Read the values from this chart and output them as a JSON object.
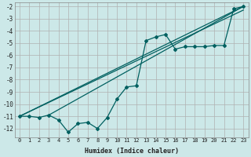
{
  "xlabel": "Humidex (Indice chaleur)",
  "background_color": "#cce8e8",
  "grid_color": "#b0b0b0",
  "line_color": "#006060",
  "xlim": [
    -0.5,
    23.5
  ],
  "ylim": [
    -12.7,
    -1.7
  ],
  "xticks": [
    0,
    1,
    2,
    3,
    4,
    5,
    6,
    7,
    8,
    9,
    10,
    11,
    12,
    13,
    14,
    15,
    16,
    17,
    18,
    19,
    20,
    21,
    22,
    23
  ],
  "yticks": [
    -2,
    -3,
    -4,
    -5,
    -6,
    -7,
    -8,
    -9,
    -10,
    -11,
    -12
  ],
  "jagged_x": [
    0,
    1,
    2,
    3,
    4,
    5,
    6,
    7,
    8,
    9,
    10,
    11,
    12,
    13,
    14,
    15,
    16,
    17,
    18,
    19,
    20,
    21,
    22,
    23
  ],
  "jagged_y": [
    -11.0,
    -11.0,
    -11.1,
    -10.9,
    -11.3,
    -12.3,
    -11.6,
    -11.5,
    -12.0,
    -11.1,
    -9.6,
    -8.6,
    -8.5,
    -4.8,
    -4.5,
    -4.3,
    -5.5,
    -5.3,
    -5.3,
    -5.3,
    -5.2,
    -5.2,
    -2.2,
    -2.0
  ],
  "trend1_x": [
    0,
    23
  ],
  "trend1_y": [
    -11.0,
    -2.0
  ],
  "trend2_x": [
    0,
    23
  ],
  "trend2_y": [
    -11.0,
    -2.3
  ],
  "trend3_x": [
    3,
    23
  ],
  "trend3_y": [
    -10.9,
    -2.0
  ]
}
